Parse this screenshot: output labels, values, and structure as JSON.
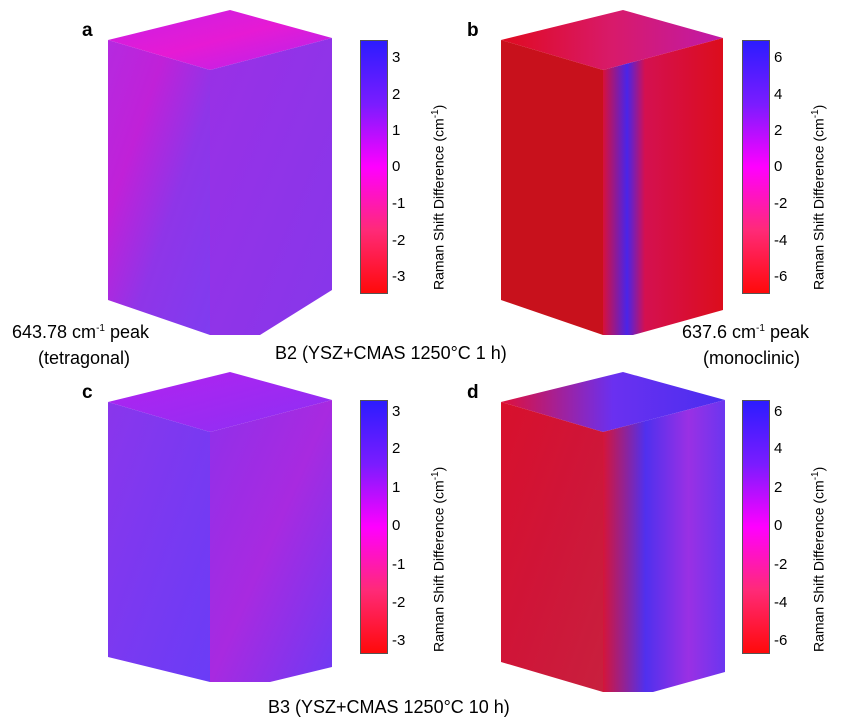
{
  "panels": {
    "a": {
      "letter": "a"
    },
    "b": {
      "letter": "b"
    },
    "c": {
      "letter": "c"
    },
    "d": {
      "letter": "d"
    }
  },
  "colorbar_small": {
    "ticks": [
      "3",
      "2",
      "1",
      "0",
      "-1",
      "-2",
      "-3"
    ]
  },
  "colorbar_large": {
    "ticks": [
      "6",
      "4",
      "2",
      "0",
      "-2",
      "-4",
      "-6"
    ]
  },
  "colorbar_label": {
    "main": "Raman Shift Difference (cm",
    "sup": "-1",
    "end": ")"
  },
  "captions": {
    "tetragonal_prefix": "643.78 cm",
    "tetragonal_sup": "-1",
    "tetragonal_suffix": " peak",
    "tetragonal_phase": "(tetragonal)",
    "monoclinic_prefix": "637.6 cm",
    "monoclinic_sup": "-1",
    "monoclinic_suffix": " peak",
    "monoclinic_phase": "(monoclinic)",
    "b2": "B2 (YSZ+CMAS 1250°C 1 h)",
    "b3": "B3 (YSZ+CMAS 1250°C 10 h)"
  },
  "colors": {
    "blue": "#2c1cff",
    "magenta": "#ff00ff",
    "red": "#ff0a0a"
  }
}
